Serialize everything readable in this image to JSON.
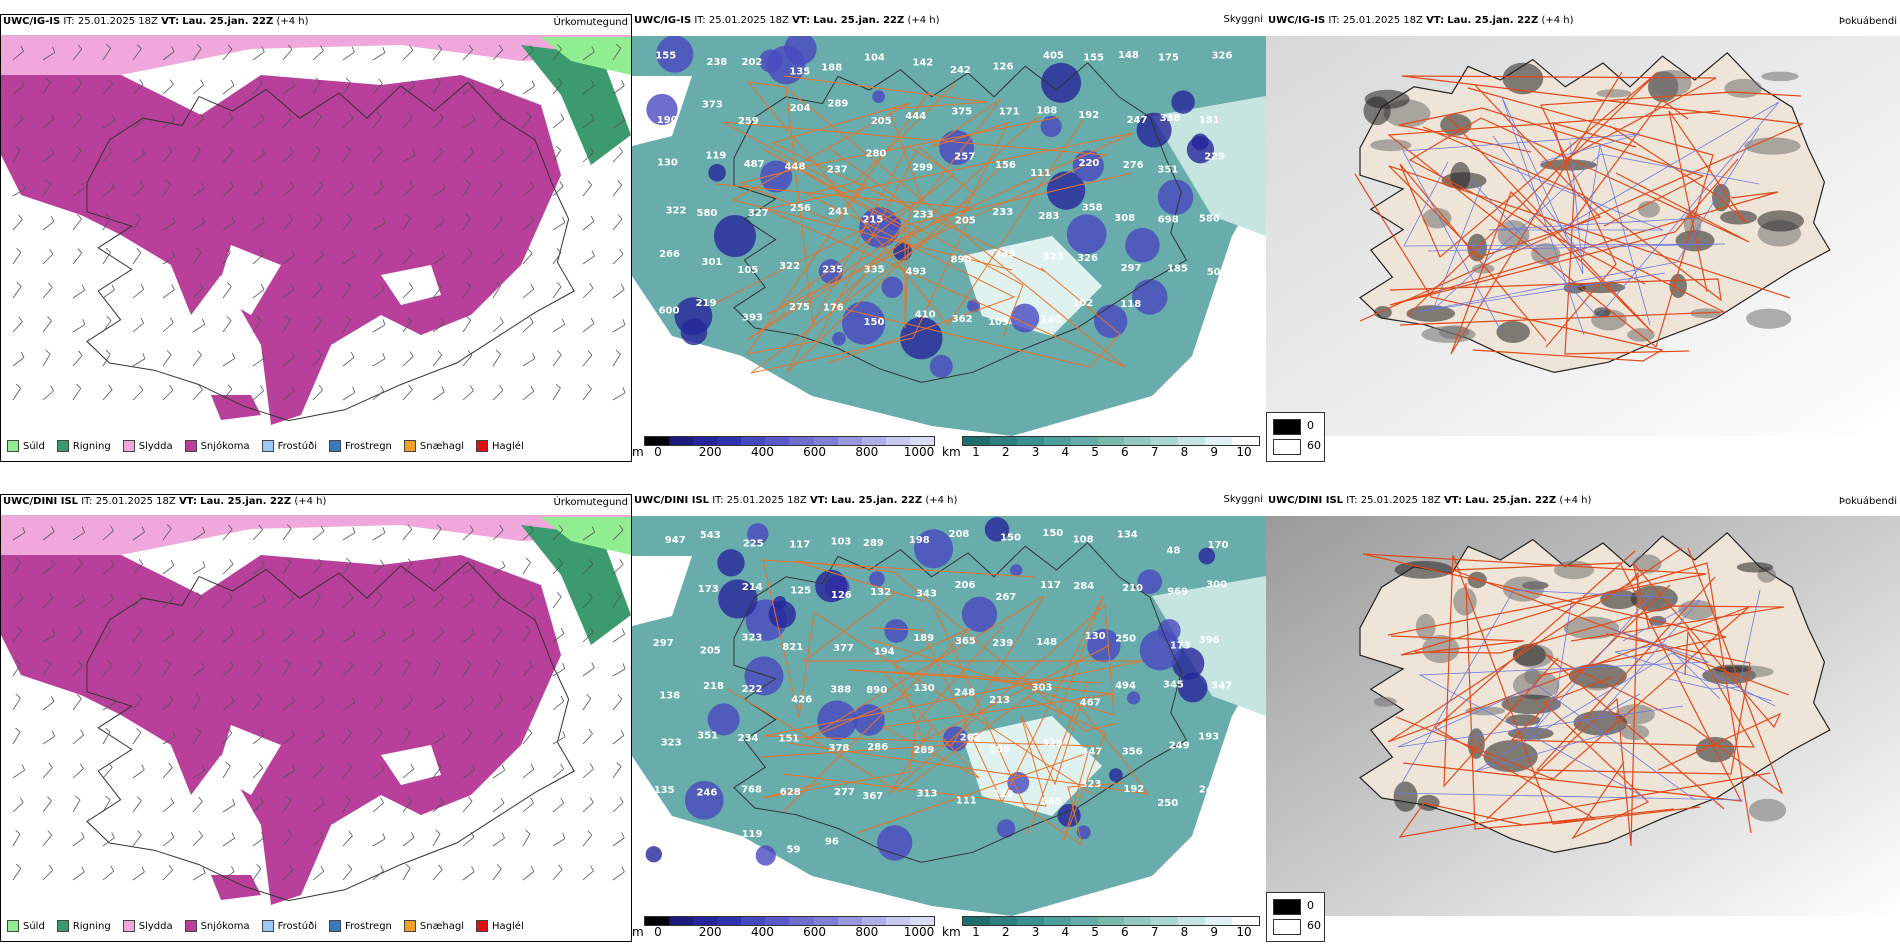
{
  "rows": [
    {
      "precip": {
        "model": "UWC/IG-IS",
        "it_label": "IT:",
        "it_value": "25.01.2025 18Z",
        "vt_label": "VT:",
        "vt_value": "Lau. 25.jan. 22Z",
        "lead": "(+4 h)",
        "title": "Úrkomutegund"
      },
      "cloud": {
        "model": "UWC/IG-IS",
        "it_label": "IT:",
        "it_value": "25.01.2025 18Z",
        "vt_label": "VT:",
        "vt_value": "Lau. 25.jan. 22Z",
        "lead": "(+4 h)",
        "title": "Skyggni",
        "labels": [
          "155",
          "238",
          "202",
          "135",
          "188",
          "104",
          "142",
          "242",
          "126",
          "405",
          "155",
          "148",
          "175",
          "326",
          "190",
          "373",
          "259",
          "204",
          "289",
          "205",
          "444",
          "375",
          "171",
          "188",
          "192",
          "247",
          "338",
          "181",
          "130",
          "119",
          "487",
          "448",
          "237",
          "280",
          "299",
          "257",
          "156",
          "111",
          "220",
          "276",
          "351",
          "229",
          "322",
          "580",
          "327",
          "256",
          "241",
          "215",
          "233",
          "205",
          "233",
          "283",
          "358",
          "308",
          "698",
          "586",
          "266",
          "301",
          "105",
          "322",
          "235",
          "335",
          "493",
          "890",
          "335",
          "323",
          "326",
          "297",
          "185",
          "500",
          "600",
          "219",
          "393",
          "275",
          "176",
          "150",
          "410",
          "362",
          "109",
          "140",
          "102",
          "118"
        ]
      },
      "fog": {
        "model": "UWC/IG-IS",
        "it_label": "IT:",
        "it_value": "25.01.2025 18Z",
        "vt_label": "VT:",
        "vt_value": "Lau. 25.jan. 22Z",
        "lead": "(+4 h)",
        "title": "Þokuábendi"
      }
    },
    {
      "precip": {
        "model": "UWC/DINI ISL",
        "it_label": "IT:",
        "it_value": "25.01.2025 18Z",
        "vt_label": "VT:",
        "vt_value": "Lau. 25.jan. 22Z",
        "lead": "(+4 h)",
        "title": "Úrkomutegund"
      },
      "cloud": {
        "model": "UWC/DINI ISL",
        "it_label": "IT:",
        "it_value": "25.01.2025 18Z",
        "vt_label": "VT:",
        "vt_value": "Lau. 25.jan. 22Z",
        "lead": "(+4 h)",
        "title": "Skyggni",
        "labels": [
          "947",
          "543",
          "225",
          "117",
          "103",
          "289",
          "198",
          "208",
          "150",
          "150",
          "108",
          "134",
          "48",
          "170",
          "184",
          "173",
          "214",
          "125",
          "126",
          "132",
          "343",
          "206",
          "267",
          "117",
          "284",
          "210",
          "969",
          "300",
          "297",
          "205",
          "323",
          "821",
          "377",
          "194",
          "189",
          "365",
          "239",
          "148",
          "130",
          "250",
          "173",
          "396",
          "138",
          "218",
          "222",
          "426",
          "388",
          "890",
          "130",
          "248",
          "213",
          "303",
          "467",
          "494",
          "345",
          "347",
          "323",
          "351",
          "234",
          "151",
          "378",
          "286",
          "289",
          "262",
          "209",
          "325",
          "347",
          "356",
          "249",
          "193",
          "135",
          "246",
          "768",
          "628",
          "277",
          "367",
          "313",
          "111",
          "129",
          "565",
          "323",
          "192",
          "250",
          "245",
          "89",
          "445",
          "119",
          "59",
          "96"
        ]
      },
      "fog": {
        "model": "UWC/DINI ISL",
        "it_label": "IT:",
        "it_value": "25.01.2025 18Z",
        "vt_label": "VT:",
        "vt_value": "Lau. 25.jan. 22Z",
        "lead": "(+4 h)",
        "title": "Þokuábendi"
      }
    }
  ],
  "precip_legend": [
    {
      "label": "Súld",
      "color": "#90ee90"
    },
    {
      "label": "Rigning",
      "color": "#3c9b6e"
    },
    {
      "label": "Slydda",
      "color": "#f0a8dc"
    },
    {
      "label": "Snjókoma",
      "color": "#b8409a"
    },
    {
      "label": "Frostúði",
      "color": "#9ec8f5"
    },
    {
      "label": "Frostregn",
      "color": "#3a78c0"
    },
    {
      "label": "Snæhagl",
      "color": "#f0a020"
    },
    {
      "label": "Haglél",
      "color": "#e01010"
    }
  ],
  "cloud_base_bar": {
    "unit": "m",
    "ticks": [
      "0",
      "200",
      "400",
      "600",
      "800",
      "1000"
    ],
    "colors": [
      "#000000",
      "#1a1a7a",
      "#25259a",
      "#3030b0",
      "#4848c0",
      "#5a5ac8",
      "#6e6ed0",
      "#8080d8",
      "#9898e0",
      "#b0b0e8",
      "#c8c8f0",
      "#dcdcf6"
    ]
  },
  "visibility_bar": {
    "unit": "km",
    "ticks": [
      "1",
      "2",
      "3",
      "4",
      "5",
      "6",
      "7",
      "8",
      "9",
      "10"
    ],
    "colors": [
      "#1e6e6e",
      "#2c8080",
      "#3a9090",
      "#4e9e9e",
      "#64acac",
      "#7abaa8",
      "#92c8c0",
      "#acd6d0",
      "#c6e4e0",
      "#e0f2f0",
      "#ffffff"
    ]
  },
  "fog_legend": {
    "high": "0",
    "low": "60",
    "high_color": "#000000",
    "low_color": "#ffffff"
  }
}
